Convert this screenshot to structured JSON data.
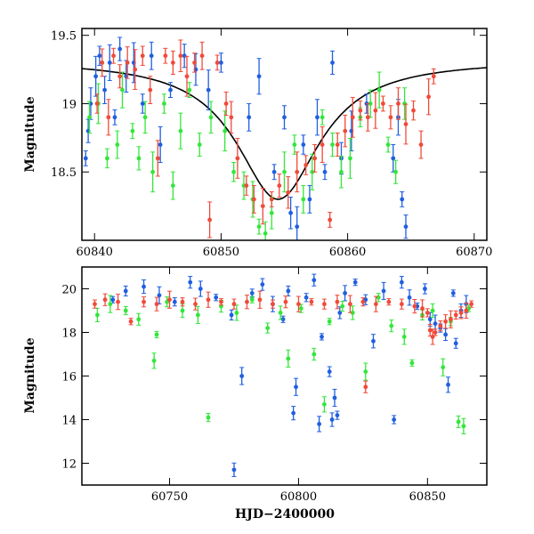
{
  "chart_data": [
    {
      "type": "scatter",
      "title": "",
      "xlabel": "",
      "ylabel": "Magnitude",
      "xlim": [
        60839,
        60871
      ],
      "ylim": [
        19.55,
        18.0
      ],
      "y_inverted": true,
      "x_ticks": [
        60840,
        60850,
        60860,
        60870
      ],
      "y_ticks": [
        18.5,
        19,
        19.5
      ],
      "x_tick_labels": [
        "60840",
        "60850",
        "60860",
        "60870"
      ],
      "y_tick_labels": [
        "18.5",
        "19",
        "19.5"
      ],
      "series": [
        {
          "color": "#1f5fe0",
          "points": [
            [
              60839.3,
              18.6
            ],
            [
              60839.5,
              18.8
            ],
            [
              60839.7,
              19.0
            ],
            [
              60840.1,
              19.2
            ],
            [
              60840.4,
              19.35
            ],
            [
              60840.8,
              19.1
            ],
            [
              60841.2,
              19.3
            ],
            [
              60841.6,
              18.9
            ],
            [
              60842.0,
              19.4
            ],
            [
              60842.5,
              19.2
            ],
            [
              60843.1,
              19.3
            ],
            [
              60843.8,
              19.0
            ],
            [
              60844.5,
              19.35
            ],
            [
              60845.2,
              18.7
            ],
            [
              60846.0,
              19.1
            ],
            [
              60847.1,
              19.35
            ],
            [
              60848.0,
              19.25
            ],
            [
              60849.0,
              19.1
            ],
            [
              60850.0,
              19.3
            ],
            [
              60852.2,
              18.9
            ],
            [
              60853.0,
              19.2
            ],
            [
              60854.2,
              18.5
            ],
            [
              60855.0,
              18.9
            ],
            [
              60855.5,
              18.2
            ],
            [
              60856.0,
              18.1
            ],
            [
              60856.5,
              18.7
            ],
            [
              60857.0,
              18.3
            ],
            [
              60857.6,
              18.9
            ],
            [
              60858.2,
              18.5
            ],
            [
              60858.8,
              19.3
            ],
            [
              60859.5,
              18.6
            ],
            [
              60860.3,
              18.8
            ],
            [
              60861.5,
              19.0
            ],
            [
              60863.6,
              18.6
            ],
            [
              60864.0,
              18.9
            ],
            [
              60864.3,
              18.3
            ],
            [
              60864.6,
              18.1
            ]
          ]
        },
        {
          "color": "#33e63a",
          "points": [
            [
              60839.6,
              18.9
            ],
            [
              60840.3,
              19.0
            ],
            [
              60841.0,
              18.6
            ],
            [
              60841.8,
              18.7
            ],
            [
              60842.2,
              19.1
            ],
            [
              60843.0,
              18.8
            ],
            [
              60843.5,
              18.6
            ],
            [
              60844.0,
              18.9
            ],
            [
              60844.6,
              18.5
            ],
            [
              60845.5,
              19.0
            ],
            [
              60846.2,
              18.4
            ],
            [
              60846.8,
              18.8
            ],
            [
              60847.5,
              19.1
            ],
            [
              60848.3,
              18.7
            ],
            [
              60849.2,
              18.9
            ],
            [
              60850.3,
              18.8
            ],
            [
              60851.0,
              18.5
            ],
            [
              60851.8,
              18.4
            ],
            [
              60852.5,
              18.3
            ],
            [
              60853.0,
              18.1
            ],
            [
              60853.5,
              18.05
            ],
            [
              60854.0,
              18.2
            ],
            [
              60855.0,
              18.5
            ],
            [
              60855.8,
              18.7
            ],
            [
              60856.5,
              18.3
            ],
            [
              60857.2,
              18.5
            ],
            [
              60858.0,
              18.9
            ],
            [
              60858.8,
              18.7
            ],
            [
              60859.5,
              18.5
            ],
            [
              60860.2,
              18.6
            ],
            [
              60861.0,
              18.9
            ],
            [
              60861.8,
              19.0
            ],
            [
              60862.5,
              19.1
            ],
            [
              60863.2,
              18.7
            ],
            [
              60863.8,
              18.5
            ],
            [
              60864.5,
              19.0
            ]
          ]
        },
        {
          "color": "#f04a3a",
          "points": [
            [
              60840.2,
              19.0
            ],
            [
              60840.6,
              19.3
            ],
            [
              60841.1,
              18.9
            ],
            [
              60841.5,
              19.35
            ],
            [
              60842.0,
              19.2
            ],
            [
              60842.6,
              19.3
            ],
            [
              60843.2,
              19.25
            ],
            [
              60843.8,
              19.35
            ],
            [
              60844.4,
              19.1
            ],
            [
              60845.0,
              18.6
            ],
            [
              60845.6,
              19.35
            ],
            [
              60846.2,
              19.3
            ],
            [
              60846.8,
              19.35
            ],
            [
              60847.3,
              19.2
            ],
            [
              60847.9,
              19.3
            ],
            [
              60848.5,
              19.35
            ],
            [
              60849.1,
              18.15
            ],
            [
              60849.7,
              19.3
            ],
            [
              60850.4,
              19.0
            ],
            [
              60850.8,
              18.9
            ],
            [
              60851.3,
              18.6
            ],
            [
              60852.0,
              18.4
            ],
            [
              60852.6,
              18.3
            ],
            [
              60853.3,
              18.25
            ],
            [
              60854.0,
              18.3
            ],
            [
              60854.6,
              18.4
            ],
            [
              60855.3,
              18.35
            ],
            [
              60856.0,
              18.5
            ],
            [
              60856.7,
              18.55
            ],
            [
              60857.4,
              18.6
            ],
            [
              60858.0,
              18.7
            ],
            [
              60858.6,
              18.15
            ],
            [
              60859.2,
              18.7
            ],
            [
              60859.8,
              18.8
            ],
            [
              60860.4,
              18.9
            ],
            [
              60861.0,
              18.95
            ],
            [
              60861.6,
              18.9
            ],
            [
              60862.2,
              18.95
            ],
            [
              60862.8,
              19.0
            ],
            [
              60863.4,
              18.9
            ],
            [
              60864.0,
              19.0
            ],
            [
              60864.6,
              18.85
            ],
            [
              60865.2,
              18.95
            ],
            [
              60865.8,
              18.7
            ],
            [
              60866.4,
              19.05
            ],
            [
              60866.8,
              19.2
            ]
          ]
        }
      ],
      "model_curve": {
        "color": "#000000",
        "peak_x": 60854.5,
        "peak_mag": 18.3,
        "base_mag": 19.32,
        "width": 4.0
      }
    },
    {
      "type": "scatter",
      "title": "",
      "xlabel": "HJD−2400000",
      "ylabel": "Magnitude",
      "xlim": [
        60716,
        60873
      ],
      "ylim": [
        21.0,
        11.0
      ],
      "y_inverted": true,
      "x_ticks": [
        60750,
        60800,
        60850
      ],
      "y_ticks": [
        12,
        14,
        16,
        18,
        20
      ],
      "x_tick_labels": [
        "60750",
        "60800",
        "60850"
      ],
      "y_tick_labels": [
        "12",
        "14",
        "16",
        "18",
        "20"
      ],
      "series": [
        {
          "color": "#1f5fe0",
          "points": [
            [
              60728,
              19.5
            ],
            [
              60733,
              19.9
            ],
            [
              60740,
              20.1
            ],
            [
              60746,
              19.7
            ],
            [
              60752,
              19.4
            ],
            [
              60758,
              20.3
            ],
            [
              60762,
              20.0
            ],
            [
              60768,
              19.6
            ],
            [
              60774,
              18.8
            ],
            [
              60775,
              11.7
            ],
            [
              60778,
              16.0
            ],
            [
              60782,
              19.8
            ],
            [
              60786,
              20.2
            ],
            [
              60790,
              19.3
            ],
            [
              60794,
              18.6
            ],
            [
              60796,
              19.9
            ],
            [
              60798,
              14.3
            ],
            [
              60799,
              15.5
            ],
            [
              60803,
              19.6
            ],
            [
              60806,
              20.4
            ],
            [
              60808,
              13.8
            ],
            [
              60809,
              17.8
            ],
            [
              60812,
              16.2
            ],
            [
              60813,
              14.0
            ],
            [
              60814,
              15.0
            ],
            [
              60815,
              14.2
            ],
            [
              60816,
              18.9
            ],
            [
              60818,
              19.8
            ],
            [
              60822,
              20.3
            ],
            [
              60826,
              19.5
            ],
            [
              60829,
              17.6
            ],
            [
              60833,
              19.9
            ],
            [
              60837,
              14.0
            ],
            [
              60840,
              20.3
            ],
            [
              60843,
              19.6
            ],
            [
              60846,
              19.2
            ],
            [
              60849,
              20.0
            ],
            [
              60851,
              18.6
            ],
            [
              60853,
              18.4
            ],
            [
              60855,
              18.2
            ],
            [
              60857,
              17.9
            ],
            [
              60858,
              15.6
            ],
            [
              60860,
              19.8
            ],
            [
              60861,
              17.5
            ],
            [
              60863,
              19.0
            ],
            [
              60865,
              19.3
            ]
          ]
        },
        {
          "color": "#33e63a",
          "points": [
            [
              60722,
              18.8
            ],
            [
              60727,
              19.3
            ],
            [
              60733,
              19.0
            ],
            [
              60738,
              18.6
            ],
            [
              60744,
              16.7
            ],
            [
              60745,
              17.9
            ],
            [
              60749,
              19.4
            ],
            [
              60755,
              19.0
            ],
            [
              60761,
              18.8
            ],
            [
              60765,
              14.1
            ],
            [
              60770,
              19.2
            ],
            [
              60776,
              18.9
            ],
            [
              60782,
              19.5
            ],
            [
              60788,
              18.2
            ],
            [
              60793,
              18.9
            ],
            [
              60796,
              16.8
            ],
            [
              60801,
              19.1
            ],
            [
              60806,
              17.0
            ],
            [
              60810,
              14.7
            ],
            [
              60812,
              18.5
            ],
            [
              60817,
              19.2
            ],
            [
              60821,
              18.9
            ],
            [
              60826,
              16.2
            ],
            [
              60831,
              19.6
            ],
            [
              60836,
              18.3
            ],
            [
              60841,
              17.8
            ],
            [
              60844,
              16.6
            ],
            [
              60848,
              18.8
            ],
            [
              60852,
              19.0
            ],
            [
              60856,
              16.4
            ],
            [
              60859,
              18.5
            ],
            [
              60862,
              13.9
            ],
            [
              60864,
              13.7
            ],
            [
              60866,
              19.1
            ]
          ]
        },
        {
          "color": "#f04a3a",
          "points": [
            [
              60721,
              19.3
            ],
            [
              60725,
              19.5
            ],
            [
              60730,
              19.4
            ],
            [
              60735,
              18.5
            ],
            [
              60740,
              19.4
            ],
            [
              60745,
              19.3
            ],
            [
              60750,
              19.5
            ],
            [
              60755,
              19.4
            ],
            [
              60760,
              19.3
            ],
            [
              60765,
              19.5
            ],
            [
              60770,
              19.4
            ],
            [
              60775,
              19.3
            ],
            [
              60780,
              19.4
            ],
            [
              60785,
              19.5
            ],
            [
              60790,
              19.3
            ],
            [
              60795,
              19.4
            ],
            [
              60800,
              19.3
            ],
            [
              60805,
              19.4
            ],
            [
              60810,
              19.3
            ],
            [
              60815,
              19.4
            ],
            [
              60820,
              19.3
            ],
            [
              60825,
              19.4
            ],
            [
              60826,
              15.5
            ],
            [
              60830,
              19.3
            ],
            [
              60835,
              19.4
            ],
            [
              60840,
              19.3
            ],
            [
              60845,
              19.2
            ],
            [
              60848,
              19.1
            ],
            [
              60850,
              18.9
            ],
            [
              60851,
              18.1
            ],
            [
              60852,
              17.8
            ],
            [
              60853,
              18.0
            ],
            [
              60855,
              18.3
            ],
            [
              60857,
              18.5
            ],
            [
              60859,
              18.6
            ],
            [
              60861,
              18.8
            ],
            [
              60863,
              18.9
            ],
            [
              60865,
              19.0
            ],
            [
              60867,
              19.3
            ]
          ]
        }
      ]
    }
  ]
}
